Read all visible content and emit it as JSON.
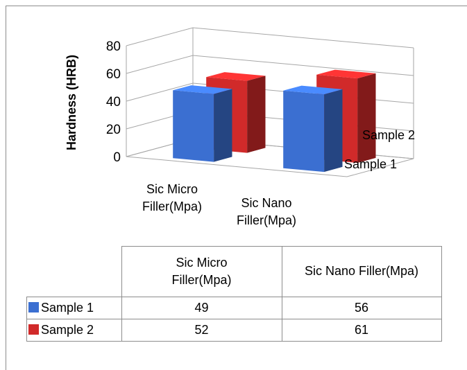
{
  "chart_data": {
    "type": "bar",
    "title": "",
    "ylabel": "Hardness (HRB)",
    "xlabel": "",
    "ylim": [
      0,
      80
    ],
    "yticks": [
      0,
      20,
      40,
      60,
      80
    ],
    "categories": [
      "Sic Micro Filler(Mpa)",
      "Sic Nano Filler(Mpa)"
    ],
    "category_labels_chart": [
      [
        "Sic Micro",
        "Filler(Mpa)"
      ],
      [
        "Sic Nano",
        "Filler(Mpa)"
      ]
    ],
    "category_labels_table": [
      [
        "Sic Micro",
        "Filler(Mpa)"
      ],
      [
        "Sic Nano  Filler(Mpa)"
      ]
    ],
    "series": [
      {
        "name": "Sample 1",
        "values": [
          49,
          56
        ],
        "color": "#3b6fd1"
      },
      {
        "name": "Sample 2",
        "values": [
          52,
          61
        ],
        "color": "#d12a2a"
      }
    ],
    "depth_labels": [
      "Sample 2",
      "Sample 1"
    ],
    "style": "3d-column",
    "grid": true,
    "data_table": true
  }
}
